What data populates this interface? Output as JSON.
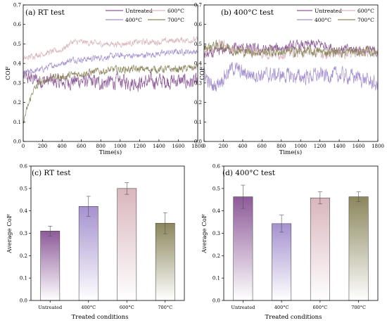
{
  "legend_labels": [
    "Untreated",
    "600°C",
    "400°C",
    "700°C"
  ],
  "colors": {
    "Untreated": "#8d5a99",
    "400°C": "#a591cf",
    "600°C": "#d9b6bd",
    "700°C": "#8b865c"
  },
  "chart_data": [
    {
      "type": "line",
      "title": "(a) RT test",
      "xlabel": "Time(s)",
      "ylabel": "COF",
      "xlim": [
        0,
        1800
      ],
      "ylim": [
        0,
        0.7
      ],
      "xticks": [
        0,
        200,
        400,
        600,
        800,
        1000,
        1200,
        1400,
        1600,
        1800
      ],
      "yticks": [
        0.0,
        0.1,
        0.2,
        0.3,
        0.4,
        0.5,
        0.6,
        0.7
      ],
      "legend": [
        "Untreated",
        "600°C",
        "400°C",
        "700°C"
      ],
      "series": [
        {
          "name": "Untreated",
          "x": [
            0,
            100,
            200,
            300,
            400,
            500,
            600,
            800,
            1000,
            1200,
            1400,
            1600,
            1800
          ],
          "y": [
            0.33,
            0.32,
            0.31,
            0.31,
            0.3,
            0.31,
            0.31,
            0.3,
            0.31,
            0.3,
            0.31,
            0.31,
            0.3
          ],
          "noise": 0.03
        },
        {
          "name": "400°C",
          "x": [
            0,
            100,
            200,
            300,
            400,
            500,
            600,
            800,
            1000,
            1200,
            1400,
            1600,
            1800
          ],
          "y": [
            0.35,
            0.36,
            0.37,
            0.39,
            0.4,
            0.42,
            0.42,
            0.43,
            0.44,
            0.44,
            0.45,
            0.46,
            0.46
          ],
          "noise": 0.012
        },
        {
          "name": "600°C",
          "x": [
            0,
            100,
            200,
            300,
            400,
            500,
            600,
            800,
            1000,
            1200,
            1400,
            1600,
            1800
          ],
          "y": [
            0.42,
            0.44,
            0.45,
            0.46,
            0.47,
            0.51,
            0.51,
            0.5,
            0.5,
            0.51,
            0.51,
            0.52,
            0.52
          ],
          "noise": 0.012
        },
        {
          "name": "700°C",
          "x": [
            0,
            50,
            100,
            200,
            300,
            400,
            600,
            800,
            1000,
            1200,
            1400,
            1600,
            1800
          ],
          "y": [
            0.1,
            0.18,
            0.26,
            0.31,
            0.33,
            0.33,
            0.35,
            0.36,
            0.37,
            0.37,
            0.37,
            0.37,
            0.38
          ],
          "noise": 0.015
        }
      ]
    },
    {
      "type": "line",
      "title": "(b) 400°C test",
      "xlabel": "Time(s)",
      "ylabel": "COF",
      "xlim": [
        0,
        1800
      ],
      "ylim": [
        0,
        0.7
      ],
      "xticks": [
        0,
        200,
        400,
        600,
        800,
        1000,
        1200,
        1400,
        1600,
        1800
      ],
      "yticks": [
        0.0,
        0.1,
        0.2,
        0.3,
        0.4,
        0.5,
        0.6,
        0.7
      ],
      "legend": [
        "Untreated",
        "600°C",
        "400°C",
        "700°C"
      ],
      "series": [
        {
          "name": "Untreated",
          "x": [
            0,
            100,
            200,
            300,
            400,
            600,
            800,
            1000,
            1200,
            1400,
            1600,
            1800
          ],
          "y": [
            0.44,
            0.45,
            0.47,
            0.48,
            0.48,
            0.47,
            0.48,
            0.49,
            0.5,
            0.47,
            0.47,
            0.46
          ],
          "noise": 0.02
        },
        {
          "name": "400°C",
          "x": [
            0,
            50,
            100,
            200,
            300,
            400,
            600,
            800,
            1000,
            1200,
            1400,
            1600,
            1750,
            1800
          ],
          "y": [
            0.36,
            0.3,
            0.28,
            0.33,
            0.38,
            0.35,
            0.34,
            0.34,
            0.33,
            0.34,
            0.34,
            0.33,
            0.3,
            0.28
          ],
          "noise": 0.03
        },
        {
          "name": "600°C",
          "x": [
            0,
            100,
            200,
            300,
            400,
            600,
            800,
            1000,
            1200,
            1400,
            1600,
            1800
          ],
          "y": [
            0.45,
            0.48,
            0.5,
            0.47,
            0.47,
            0.45,
            0.45,
            0.46,
            0.45,
            0.45,
            0.46,
            0.45
          ],
          "noise": 0.02
        },
        {
          "name": "700°C",
          "x": [
            0,
            100,
            200,
            300,
            400,
            600,
            800,
            1000,
            1200,
            1400,
            1600,
            1800
          ],
          "y": [
            0.48,
            0.49,
            0.49,
            0.47,
            0.46,
            0.46,
            0.46,
            0.46,
            0.46,
            0.46,
            0.46,
            0.46
          ],
          "noise": 0.02
        }
      ]
    },
    {
      "type": "bar",
      "title": "(c) RT test",
      "xlabel": "Treated conditions",
      "ylabel": "Average CoF",
      "ylim": [
        0,
        0.6
      ],
      "yticks": [
        0.0,
        0.1,
        0.2,
        0.3,
        0.4,
        0.5,
        0.6
      ],
      "categories": [
        "Untreated",
        "400°C",
        "600°C",
        "700°C"
      ],
      "values": [
        0.31,
        0.42,
        0.5,
        0.345
      ],
      "errors": [
        0.022,
        0.045,
        0.026,
        0.047
      ]
    },
    {
      "type": "bar",
      "title": "(d) 400°C test",
      "xlabel": "Treated conditions",
      "ylabel": "Average CoF",
      "ylim": [
        0,
        0.6
      ],
      "yticks": [
        0.0,
        0.1,
        0.2,
        0.3,
        0.4,
        0.5,
        0.6
      ],
      "categories": [
        "Untreated",
        "400°C",
        "600°C",
        "700°C"
      ],
      "values": [
        0.463,
        0.343,
        0.458,
        0.463
      ],
      "errors": [
        0.052,
        0.038,
        0.027,
        0.022
      ]
    }
  ]
}
